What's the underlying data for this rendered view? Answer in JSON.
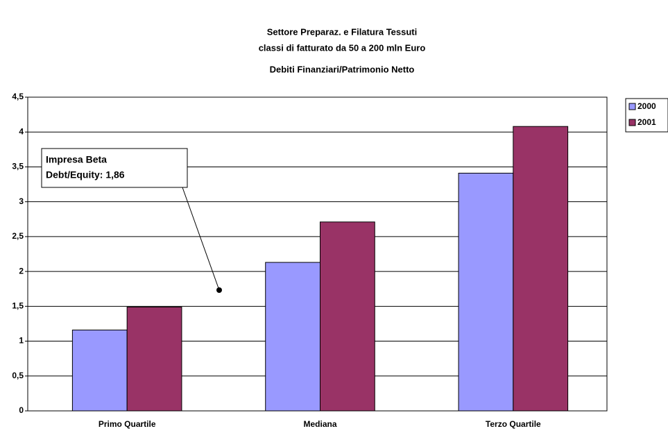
{
  "chart_data": {
    "type": "bar",
    "title": "Settore Preparaz. e Filatura Tessuti",
    "subtitle": "classi di fatturato da 50 a 200 mln Euro",
    "chart_subtitle": "Debiti Finanziari/Patrimonio Netto",
    "categories": [
      "Primo Quartile",
      "Mediana",
      "Terzo Quartile"
    ],
    "series": [
      {
        "name": "2000",
        "color": "#9999ff",
        "values": [
          1.16,
          2.13,
          3.41
        ]
      },
      {
        "name": "2001",
        "color": "#993366",
        "values": [
          1.49,
          2.71,
          4.08
        ]
      }
    ],
    "ylim": [
      0,
      4.5
    ],
    "yticks": [
      0,
      {
        "value": 0.5,
        "label": "0,5"
      },
      1,
      {
        "value": 1.5,
        "label": "1,5"
      },
      2,
      {
        "value": 2.5,
        "label": "2,5"
      },
      3,
      {
        "value": 3.5,
        "label": "3,5"
      },
      4,
      {
        "value": 4.5,
        "label": "4,5"
      }
    ],
    "grid": true,
    "legend": "right",
    "annotation": [
      "Impresa Beta",
      "Debt/Equity: 1,86"
    ]
  }
}
